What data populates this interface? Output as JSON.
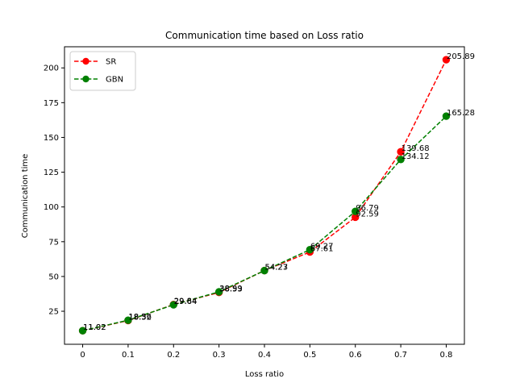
{
  "chart_data": {
    "type": "line",
    "title": "Communication time based on Loss ratio",
    "xlabel": "Loss ratio",
    "ylabel": "Communication time",
    "x": [
      0,
      0.1,
      0.2,
      0.3,
      0.4,
      0.5,
      0.6,
      0.7,
      0.8
    ],
    "x_tick_labels": [
      "0",
      "0.1",
      "0.2",
      "0.3",
      "0.4",
      "0.5",
      "0.6",
      "0.7",
      "0.8"
    ],
    "xlim": [
      -0.04,
      0.84
    ],
    "ylim": [
      1.25,
      215.2
    ],
    "y_ticks": [
      25,
      50,
      75,
      100,
      125,
      150,
      175,
      200
    ],
    "grid": false,
    "legend_position": "top-left",
    "series": [
      {
        "name": "SR",
        "color": "#ff0000",
        "values": [
          11.02,
          18.32,
          29.84,
          38.53,
          54.27,
          67.61,
          92.59,
          139.68,
          205.89
        ],
        "labels": [
          "11.02",
          "18.32",
          "29.84",
          "38.53",
          "54.27",
          "67.61",
          "92.59",
          "139.68",
          "205.89"
        ]
      },
      {
        "name": "GBN",
        "color": "#008000",
        "values": [
          11.02,
          18.56,
          29.64,
          38.99,
          54.23,
          69.27,
          96.79,
          134.12,
          165.28
        ],
        "labels": [
          "11.02",
          "18.56",
          "29.64",
          "38.99",
          "54.23",
          "69.27",
          "96.79",
          "134.12",
          "165.28"
        ]
      }
    ]
  }
}
